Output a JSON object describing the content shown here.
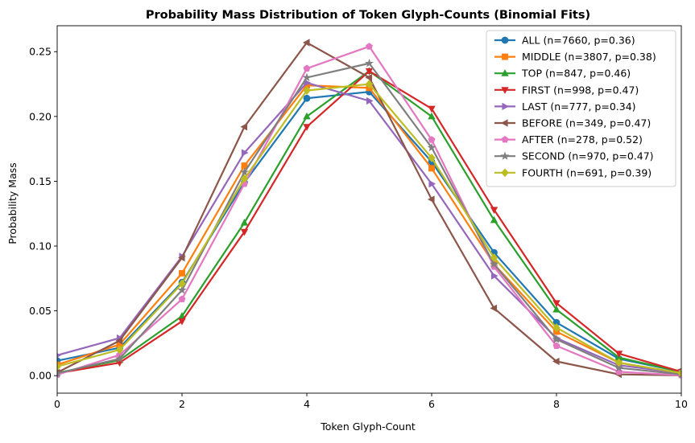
{
  "chart_data": {
    "type": "line",
    "title": "Probability Mass Distribution of Token Glyph-Counts (Binomial Fits)",
    "xlabel": "Token Glyph-Count",
    "ylabel": "Probability Mass",
    "xlim": [
      0,
      10
    ],
    "ylim": [
      -0.0135,
      0.27
    ],
    "x_ticks": [
      "0",
      "2",
      "4",
      "6",
      "8",
      "10"
    ],
    "x_tick_values": [
      0,
      2,
      4,
      6,
      8,
      10
    ],
    "y_ticks": [
      "0.00",
      "0.05",
      "0.10",
      "0.15",
      "0.20",
      "0.25"
    ],
    "y_tick_values": [
      0,
      0.05,
      0.1,
      0.15,
      0.2,
      0.25
    ],
    "grid": false,
    "legend_position": "top-right",
    "x": [
      0,
      1,
      2,
      3,
      4,
      5,
      6,
      7,
      8,
      9,
      10
    ],
    "series": [
      {
        "name": "ALL (n=7660, p=0.36)",
        "color": "#1f77b4",
        "marker": "circle",
        "values": [
          0.0115,
          0.0215,
          0.072,
          0.149,
          0.214,
          0.219,
          0.165,
          0.095,
          0.041,
          0.013,
          0.003
        ]
      },
      {
        "name": "MIDDLE (n=3807, p=0.38)",
        "color": "#ff7f0e",
        "marker": "square",
        "values": [
          0.0084,
          0.024,
          0.079,
          0.162,
          0.224,
          0.222,
          0.16,
          0.086,
          0.034,
          0.01,
          0.0015
        ]
      },
      {
        "name": "TOP (n=847, p=0.46)",
        "color": "#2ca02c",
        "marker": "triangle-up",
        "values": [
          0.0021,
          0.012,
          0.046,
          0.118,
          0.2,
          0.235,
          0.2,
          0.12,
          0.051,
          0.014,
          0.003
        ]
      },
      {
        "name": "FIRST (n=998, p=0.47)",
        "color": "#d62728",
        "marker": "triangle-down",
        "values": [
          0.0018,
          0.01,
          0.042,
          0.111,
          0.192,
          0.235,
          0.206,
          0.128,
          0.056,
          0.017,
          0.003
        ]
      },
      {
        "name": "LAST (n=777, p=0.34)",
        "color": "#9467bd",
        "marker": "triangle-right",
        "values": [
          0.0157,
          0.029,
          0.092,
          0.172,
          0.226,
          0.212,
          0.148,
          0.077,
          0.029,
          0.008,
          0.002
        ]
      },
      {
        "name": "BEFORE (n=349, p=0.47)",
        "color": "#8c564b",
        "marker": "triangle-left",
        "values": [
          0.0024,
          0.027,
          0.091,
          0.192,
          0.257,
          0.23,
          0.136,
          0.052,
          0.011,
          0.001,
          0.0002
        ]
      },
      {
        "name": "AFTER (n=278, p=0.52)",
        "color": "#e377c2",
        "marker": "pentagon",
        "values": [
          0.0007,
          0.016,
          0.059,
          0.148,
          0.237,
          0.254,
          0.182,
          0.084,
          0.023,
          0.003,
          0.0003
        ]
      },
      {
        "name": "SECOND (n=970, p=0.47)",
        "color": "#7f7f7f",
        "marker": "star",
        "values": [
          0.0018,
          0.013,
          0.066,
          0.157,
          0.23,
          0.241,
          0.176,
          0.086,
          0.028,
          0.006,
          0.001
        ]
      },
      {
        "name": "FOURTH (n=691, p=0.39)",
        "color": "#bcbd22",
        "marker": "diamond",
        "values": [
          0.0071,
          0.02,
          0.071,
          0.152,
          0.22,
          0.225,
          0.168,
          0.091,
          0.037,
          0.01,
          0.002
        ]
      }
    ]
  }
}
